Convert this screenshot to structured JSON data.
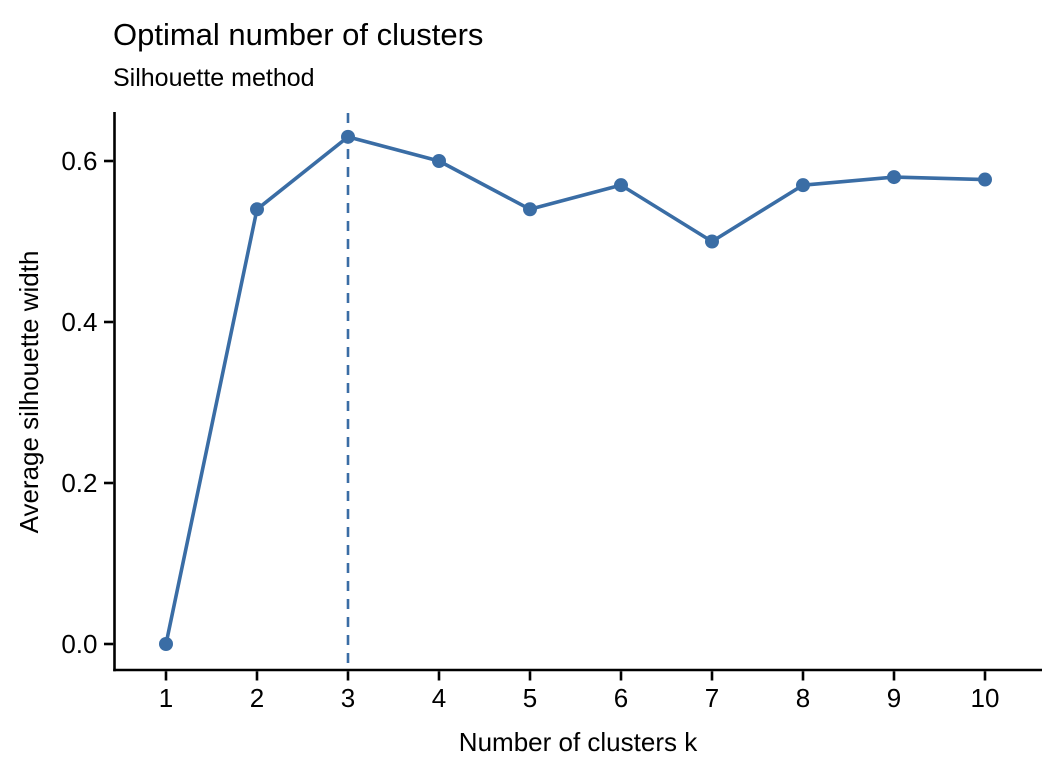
{
  "chart_data": {
    "type": "line",
    "title": "Optimal number of clusters",
    "subtitle": "Silhouette method",
    "xlabel": "Number of clusters k",
    "ylabel": "Average silhouette width",
    "x": [
      1,
      2,
      3,
      4,
      5,
      6,
      7,
      8,
      9,
      10
    ],
    "series": [
      {
        "name": "average-silhouette-width",
        "values": [
          0.0,
          0.54,
          0.63,
          0.6,
          0.54,
          0.57,
          0.5,
          0.57,
          0.58,
          0.577
        ]
      }
    ],
    "x_tick_labels": [
      "1",
      "2",
      "3",
      "4",
      "5",
      "6",
      "7",
      "8",
      "9",
      "10"
    ],
    "y_ticks": [
      0.0,
      0.2,
      0.4,
      0.6
    ],
    "y_tick_labels": [
      "0.0",
      "0.2",
      "0.4",
      "0.6"
    ],
    "xlim": [
      1,
      10
    ],
    "ylim": [
      0.0,
      0.69
    ],
    "optimal_k_vline": 3,
    "grid": false,
    "legend_position": "none",
    "marker": "circle",
    "vline_style": "dashed",
    "colors": {
      "series": "#3A6DA5",
      "axis": "#000000",
      "text": "#000000",
      "background": "#FFFFFF"
    }
  }
}
